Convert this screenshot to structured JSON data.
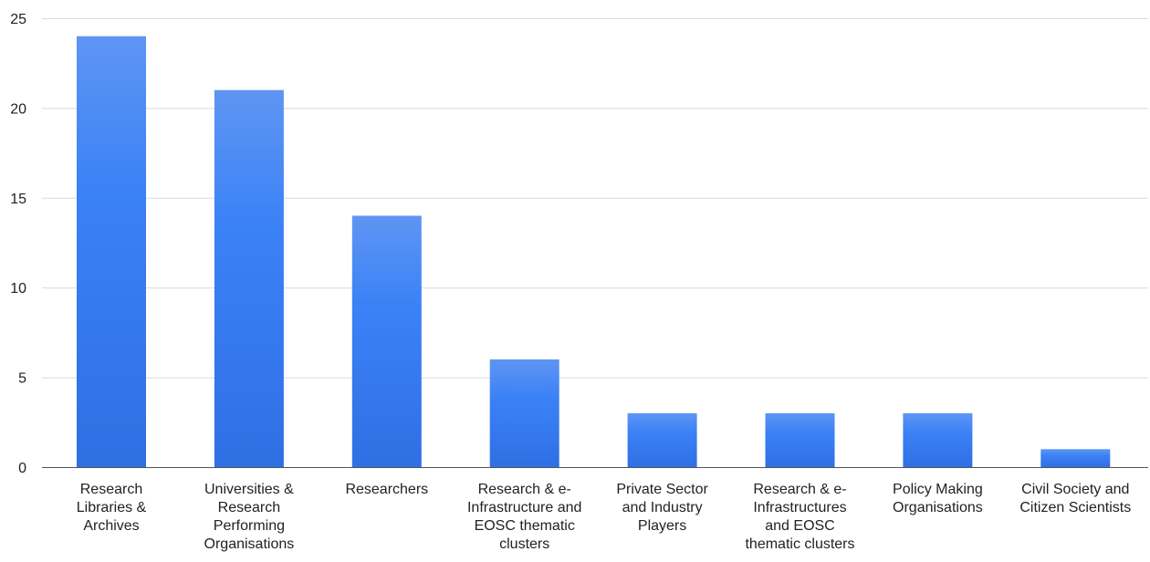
{
  "chart_data": {
    "type": "bar",
    "title": "",
    "xlabel": "",
    "ylabel": "",
    "categories": [
      [
        "Research",
        "Libraries &",
        "Archives"
      ],
      [
        "Universities &",
        "Research",
        "Performing",
        "Organisations"
      ],
      [
        "Researchers"
      ],
      [
        "Research & e-",
        "Infrastructure and",
        "EOSC thematic",
        "clusters"
      ],
      [
        "Private Sector",
        "and Industry",
        "Players"
      ],
      [
        "Research & e-",
        "Infrastructures",
        "and EOSC",
        "thematic clusters"
      ],
      [
        "Policy Making",
        "Organisations"
      ],
      [
        "Civil Society and",
        "Citizen Scientists"
      ]
    ],
    "values": [
      24,
      21,
      14,
      6,
      3,
      3,
      3,
      1
    ],
    "ylim": [
      0,
      25
    ],
    "yticks": [
      0,
      5,
      10,
      15,
      20,
      25
    ],
    "grid": true,
    "legend": "none",
    "colors": {
      "bar_top": "#5f95f3",
      "bar_bottom": "#2f6fe4",
      "bar_mid": "#3b82f6"
    }
  }
}
